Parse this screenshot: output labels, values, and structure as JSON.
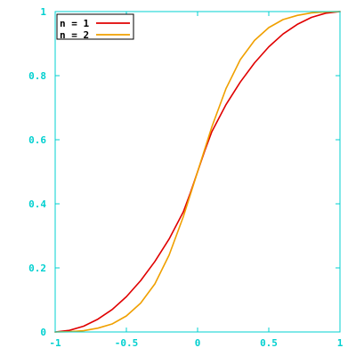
{
  "chart_data": {
    "type": "line",
    "title": "",
    "xlabel": "",
    "ylabel": "",
    "xlim": [
      -1,
      1
    ],
    "ylim": [
      0,
      1
    ],
    "x_ticks": [
      -1,
      -0.5,
      0,
      0.5,
      1
    ],
    "x_tick_labels": [
      "-1",
      "-0.5",
      "0",
      "0.5",
      "1"
    ],
    "y_ticks": [
      0,
      0.2,
      0.4,
      0.6,
      0.8,
      1
    ],
    "y_tick_labels": [
      "0",
      "0.2",
      "0.4",
      "0.6",
      "0.8",
      "1"
    ],
    "grid": false,
    "legend_position": "top-left",
    "axis_color": "#00d0d0",
    "series": [
      {
        "name": "n = 1",
        "color": "#e00000",
        "x": [
          -1,
          -0.9,
          -0.8,
          -0.7,
          -0.6,
          -0.5,
          -0.4,
          -0.3,
          -0.2,
          -0.1,
          -0.05,
          0,
          0.05,
          0.1,
          0.2,
          0.3,
          0.4,
          0.5,
          0.6,
          0.7,
          0.8,
          0.9,
          1
        ],
        "y": [
          0,
          0.005,
          0.018,
          0.04,
          0.07,
          0.11,
          0.16,
          0.22,
          0.29,
          0.375,
          0.435,
          0.5,
          0.565,
          0.625,
          0.71,
          0.78,
          0.84,
          0.89,
          0.93,
          0.96,
          0.982,
          0.995,
          1
        ]
      },
      {
        "name": "n = 2",
        "color": "#f0a000",
        "x": [
          -1,
          -0.9,
          -0.8,
          -0.7,
          -0.6,
          -0.5,
          -0.4,
          -0.3,
          -0.2,
          -0.1,
          -0.05,
          0,
          0.05,
          0.1,
          0.2,
          0.3,
          0.4,
          0.5,
          0.6,
          0.7,
          0.8,
          0.9,
          1
        ],
        "y": [
          0,
          0.001,
          0.004,
          0.012,
          0.025,
          0.05,
          0.09,
          0.15,
          0.24,
          0.36,
          0.43,
          0.5,
          0.57,
          0.64,
          0.76,
          0.85,
          0.91,
          0.95,
          0.975,
          0.988,
          0.996,
          0.999,
          1
        ]
      }
    ]
  }
}
